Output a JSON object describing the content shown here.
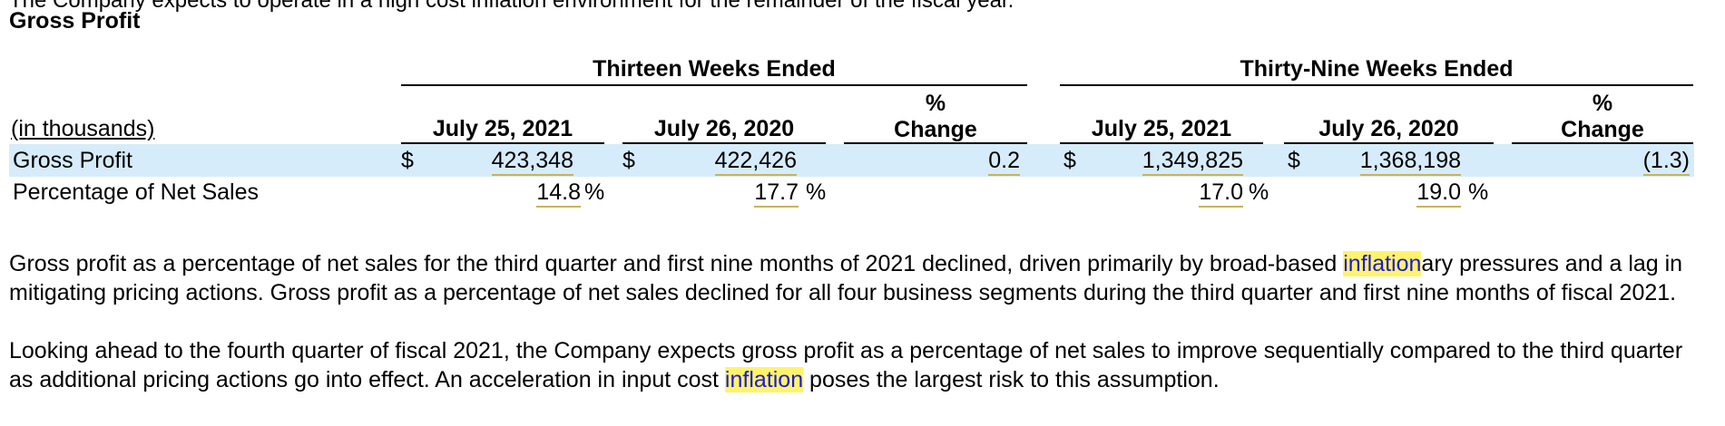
{
  "cutoff_line": "The Company expects to operate in a high cost inflation environment for the remainder of the fiscal year.",
  "section_title": "Gross Profit",
  "table": {
    "group_headers": [
      "Thirteen Weeks Ended",
      "Thirty-Nine Weeks Ended"
    ],
    "unit_label": "(in thousands)",
    "columns": [
      "July 25, 2021",
      "July 26, 2020",
      "%\nChange",
      "July 25, 2021",
      "July 26, 2020",
      "%\nChange"
    ],
    "currency_symbol": "$",
    "rows": [
      {
        "label": "Gross Profit",
        "values": [
          "423,348",
          "422,426",
          "0.2",
          "1,349,825",
          "1,368,198",
          "(1.3)"
        ]
      },
      {
        "label": "Percentage of Net Sales",
        "values": [
          "14.8",
          "17.7",
          "",
          "17.0",
          "19.0",
          ""
        ],
        "suffix": "%"
      }
    ]
  },
  "paragraphs": [
    {
      "before": "Gross profit as a percentage of net sales for the third quarter and first nine months of 2021 declined, driven primarily by broad-based ",
      "highlight": "inflation",
      "after": "ary pressures and a lag in mitigating pricing actions. Gross profit as a percentage of net sales declined for all four business segments during the third quarter and first nine months of fiscal 2021."
    },
    {
      "before": "Looking ahead to the fourth quarter of fiscal 2021, the Company expects gross profit as a percentage of net sales to improve sequentially compared to the third quarter as additional pricing actions go into effect. An acceleration in input cost ",
      "highlight": "inflation",
      "after": " poses the largest risk to this assumption."
    }
  ],
  "colors": {
    "row_highlight": "#d6ecfa",
    "search_highlight": "#fff36b",
    "highlight_text": "#1a1ad6"
  }
}
